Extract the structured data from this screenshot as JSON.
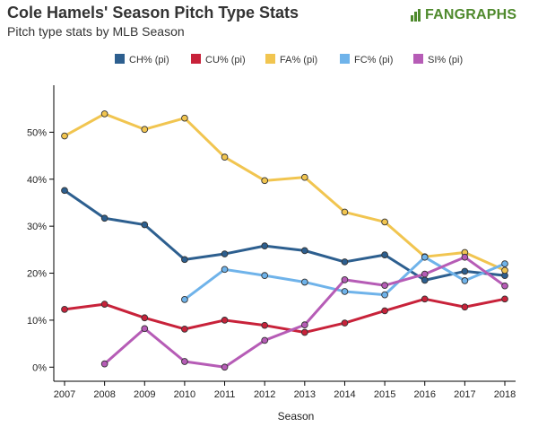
{
  "header": {
    "title": "Cole Hamels' Season Pitch Type Stats",
    "subtitle": "Pitch type stats by MLB Season",
    "logo_text": "FANGRAPHS",
    "logo_color": "#4f8a2d"
  },
  "chart_data": {
    "type": "line",
    "title": "Cole Hamels' Season Pitch Type Stats",
    "subtitle": "Pitch type stats by MLB Season",
    "xlabel": "Season",
    "ylabel": "",
    "x": [
      2007,
      2008,
      2009,
      2010,
      2011,
      2012,
      2013,
      2014,
      2015,
      2016,
      2017,
      2018
    ],
    "ylim": [
      -3,
      60
    ],
    "yticks": [
      0,
      10,
      20,
      30,
      40,
      50
    ],
    "ytick_labels": [
      "0%",
      "10%",
      "20%",
      "30%",
      "40%",
      "50%"
    ],
    "grid": false,
    "legend_position": "top",
    "series": [
      {
        "name": "CH% (pi)",
        "color": "#2d5f8f",
        "values": [
          37.6,
          31.7,
          30.3,
          22.9,
          24.1,
          25.8,
          24.8,
          22.4,
          23.9,
          18.5,
          20.4,
          19.5
        ]
      },
      {
        "name": "CU% (pi)",
        "color": "#c8223a",
        "values": [
          12.3,
          13.4,
          10.5,
          8.1,
          10.0,
          8.9,
          7.4,
          9.4,
          12.0,
          14.5,
          12.8,
          14.5
        ]
      },
      {
        "name": "FA% (pi)",
        "color": "#f1c550",
        "values": [
          49.2,
          53.9,
          50.6,
          53.0,
          44.7,
          39.7,
          40.4,
          33.0,
          30.9,
          23.5,
          24.4,
          20.6
        ]
      },
      {
        "name": "FC% (pi)",
        "color": "#6fb3ea",
        "values": [
          null,
          null,
          null,
          14.4,
          20.8,
          19.5,
          18.1,
          16.1,
          15.4,
          23.4,
          18.4,
          22.0
        ]
      },
      {
        "name": "SI% (pi)",
        "color": "#b65cb6",
        "values": [
          null,
          0.7,
          8.2,
          1.2,
          0.0,
          5.7,
          9.0,
          18.6,
          17.4,
          19.8,
          23.4,
          17.3
        ]
      }
    ]
  }
}
